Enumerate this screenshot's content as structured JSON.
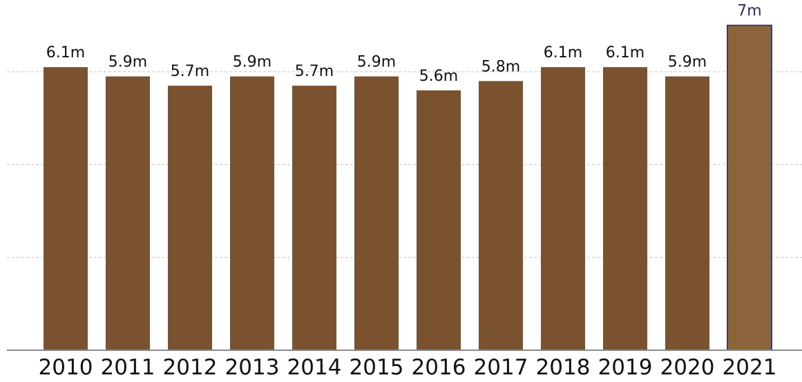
{
  "chart_data": {
    "type": "bar",
    "title": "",
    "xlabel": "",
    "ylabel": "",
    "categories": [
      "2010",
      "2011",
      "2012",
      "2013",
      "2014",
      "2015",
      "2016",
      "2017",
      "2018",
      "2019",
      "2020",
      "2021"
    ],
    "values": [
      6.1,
      5.9,
      5.7,
      5.9,
      5.7,
      5.9,
      5.6,
      5.8,
      6.1,
      6.1,
      5.9,
      7
    ],
    "value_labels": [
      "6.1m",
      "5.9m",
      "5.7m",
      "5.9m",
      "5.7m",
      "5.9m",
      "5.6m",
      "5.8m",
      "6.1m",
      "6.1m",
      "5.9m",
      "7m"
    ],
    "ylim": [
      0,
      7.1
    ],
    "gridlines": [
      2,
      4,
      6
    ],
    "grid": true,
    "highlight_index": 11,
    "colors": {
      "bar": "#7a5230",
      "highlight_bar": "#8b643c",
      "highlight_stroke": "#3a3a6e",
      "highlight_label": "#2e2e5e",
      "grid": "#c4c4c4",
      "axis": "#8a8a8a"
    }
  }
}
